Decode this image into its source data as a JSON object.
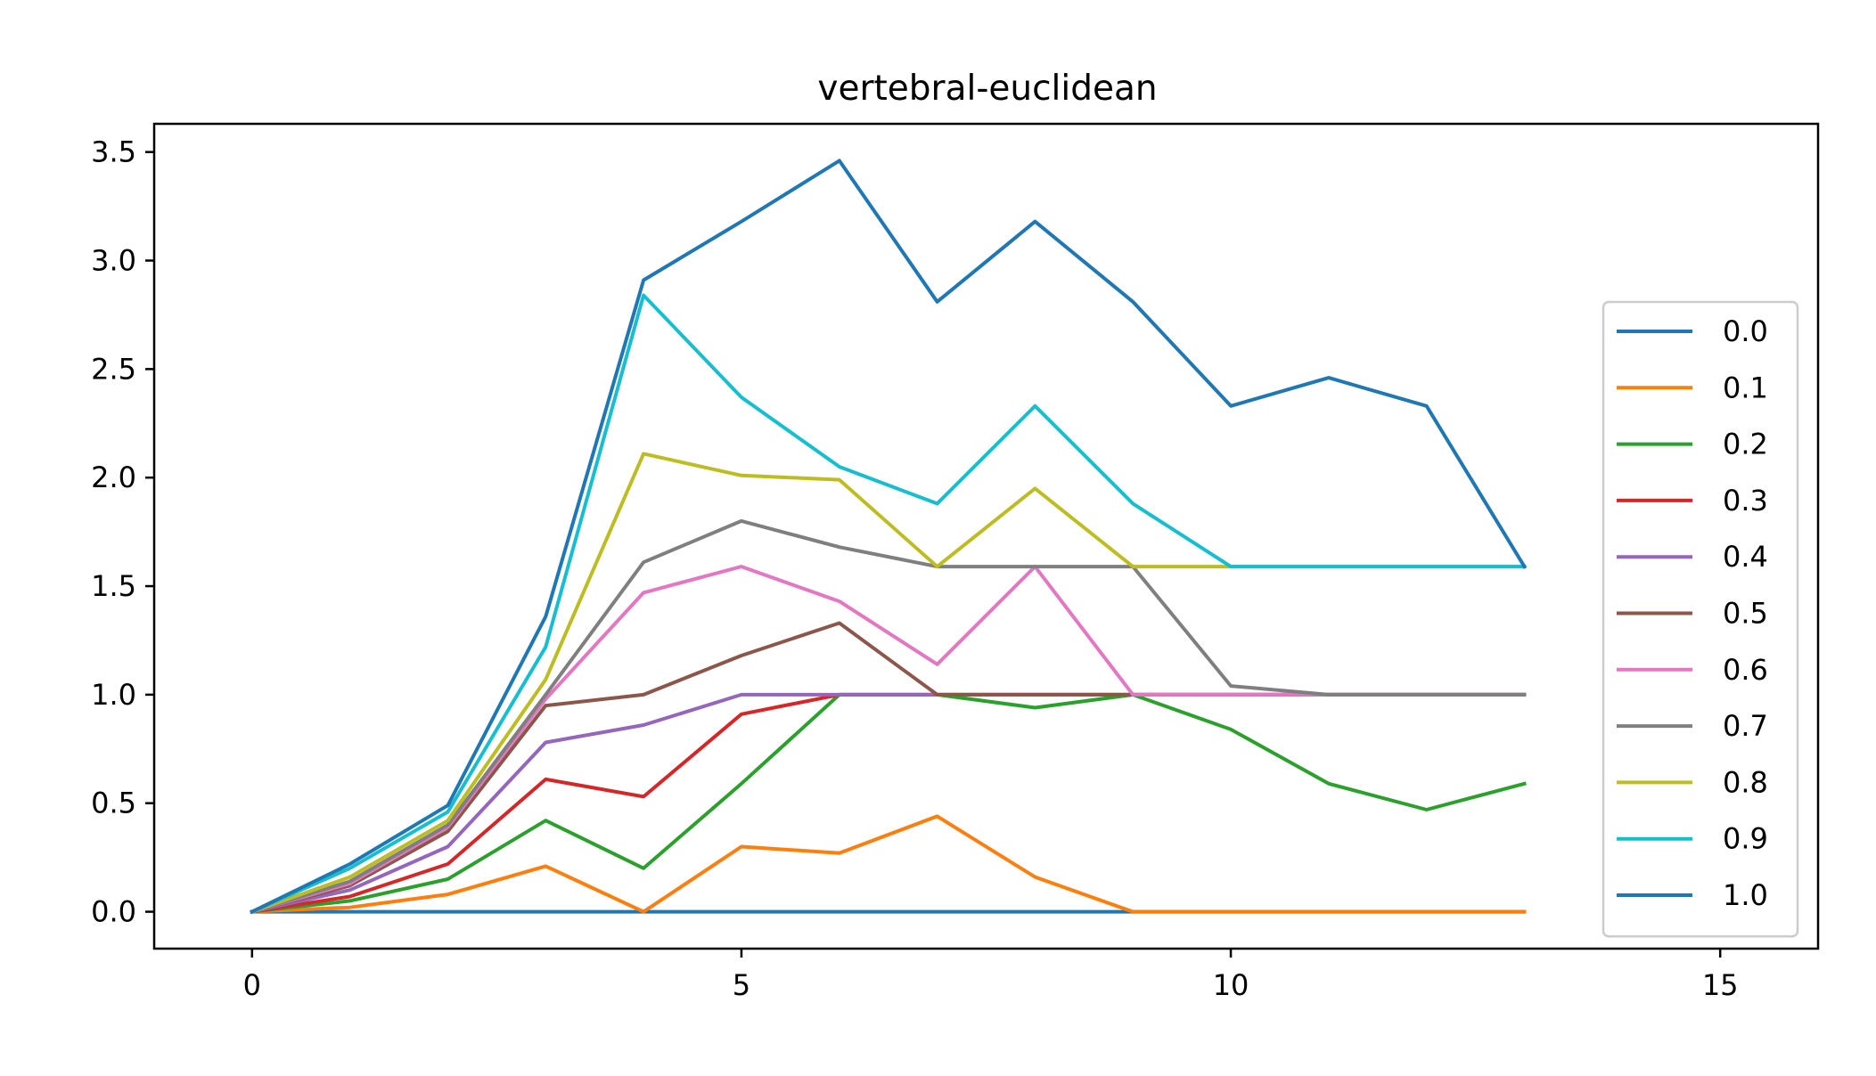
{
  "chart_data": {
    "type": "line",
    "title": "vertebral-euclidean",
    "xlabel": "",
    "ylabel": "",
    "xlim": [
      -1,
      16
    ],
    "ylim": [
      -0.17,
      3.63
    ],
    "xticks": [
      "0",
      "5",
      "10",
      "15"
    ],
    "xtick_values": [
      0,
      5,
      10,
      15
    ],
    "yticks": [
      "0.0",
      "0.5",
      "1.0",
      "1.5",
      "2.0",
      "2.5",
      "3.0",
      "3.5"
    ],
    "ytick_values": [
      0,
      0.5,
      1.0,
      1.5,
      2.0,
      2.5,
      3.0,
      3.5
    ],
    "grid": false,
    "legend_position": "center-right",
    "x": [
      0,
      1,
      2,
      3,
      4,
      5,
      6,
      7,
      8,
      9,
      10,
      11,
      12,
      13
    ],
    "series": [
      {
        "name": "0.0",
        "color": "#1f77b4",
        "values": [
          0,
          0,
          0,
          0,
          0,
          0,
          0,
          0,
          0,
          0,
          0,
          0,
          0,
          0
        ]
      },
      {
        "name": "0.1",
        "color": "#ff7f0e",
        "values": [
          0,
          0.02,
          0.08,
          0.21,
          0,
          0.3,
          0.27,
          0.44,
          0.16,
          0,
          0,
          0,
          0,
          0
        ]
      },
      {
        "name": "0.2",
        "color": "#2ca02c",
        "values": [
          0,
          0.05,
          0.15,
          0.42,
          0.2,
          0.59,
          1.0,
          1.0,
          0.94,
          1.0,
          0.84,
          0.59,
          0.47,
          0.59
        ]
      },
      {
        "name": "0.3",
        "color": "#d62728",
        "values": [
          0,
          0.07,
          0.22,
          0.61,
          0.53,
          0.91,
          1.0,
          1.0,
          1.0,
          1.0,
          1.0,
          1.0,
          1.0,
          1.0
        ]
      },
      {
        "name": "0.4",
        "color": "#9467bd",
        "values": [
          0,
          0.1,
          0.3,
          0.78,
          0.86,
          1.0,
          1.0,
          1.0,
          1.0,
          1.0,
          1.0,
          1.0,
          1.0,
          1.0
        ]
      },
      {
        "name": "0.5",
        "color": "#8c564b",
        "values": [
          0,
          0.12,
          0.37,
          0.95,
          1.0,
          1.18,
          1.33,
          1.0,
          1.0,
          1.0,
          1.0,
          1.0,
          1.0,
          1.0
        ]
      },
      {
        "name": "0.6",
        "color": "#e377c2",
        "values": [
          0,
          0.13,
          0.39,
          0.98,
          1.47,
          1.59,
          1.43,
          1.14,
          1.59,
          1.0,
          1.0,
          1.0,
          1.0,
          1.0
        ]
      },
      {
        "name": "0.7",
        "color": "#7f7f7f",
        "values": [
          0,
          0.14,
          0.4,
          1.0,
          1.61,
          1.8,
          1.68,
          1.59,
          1.59,
          1.59,
          1.04,
          1.0,
          1.0,
          1.0
        ]
      },
      {
        "name": "0.8",
        "color": "#bcbd22",
        "values": [
          0,
          0.16,
          0.42,
          1.07,
          2.11,
          2.01,
          1.99,
          1.59,
          1.95,
          1.59,
          1.59,
          1.59,
          1.59,
          1.59
        ]
      },
      {
        "name": "0.9",
        "color": "#17becf",
        "values": [
          0,
          0.2,
          0.46,
          1.22,
          2.84,
          2.37,
          2.05,
          1.88,
          2.33,
          1.88,
          1.59,
          1.59,
          1.59,
          1.59
        ]
      },
      {
        "name": "1.0",
        "color": "#1f77b4",
        "values": [
          0,
          0.22,
          0.49,
          1.36,
          2.91,
          3.18,
          3.46,
          2.81,
          3.18,
          2.81,
          2.33,
          2.46,
          2.33,
          1.59
        ]
      }
    ]
  }
}
